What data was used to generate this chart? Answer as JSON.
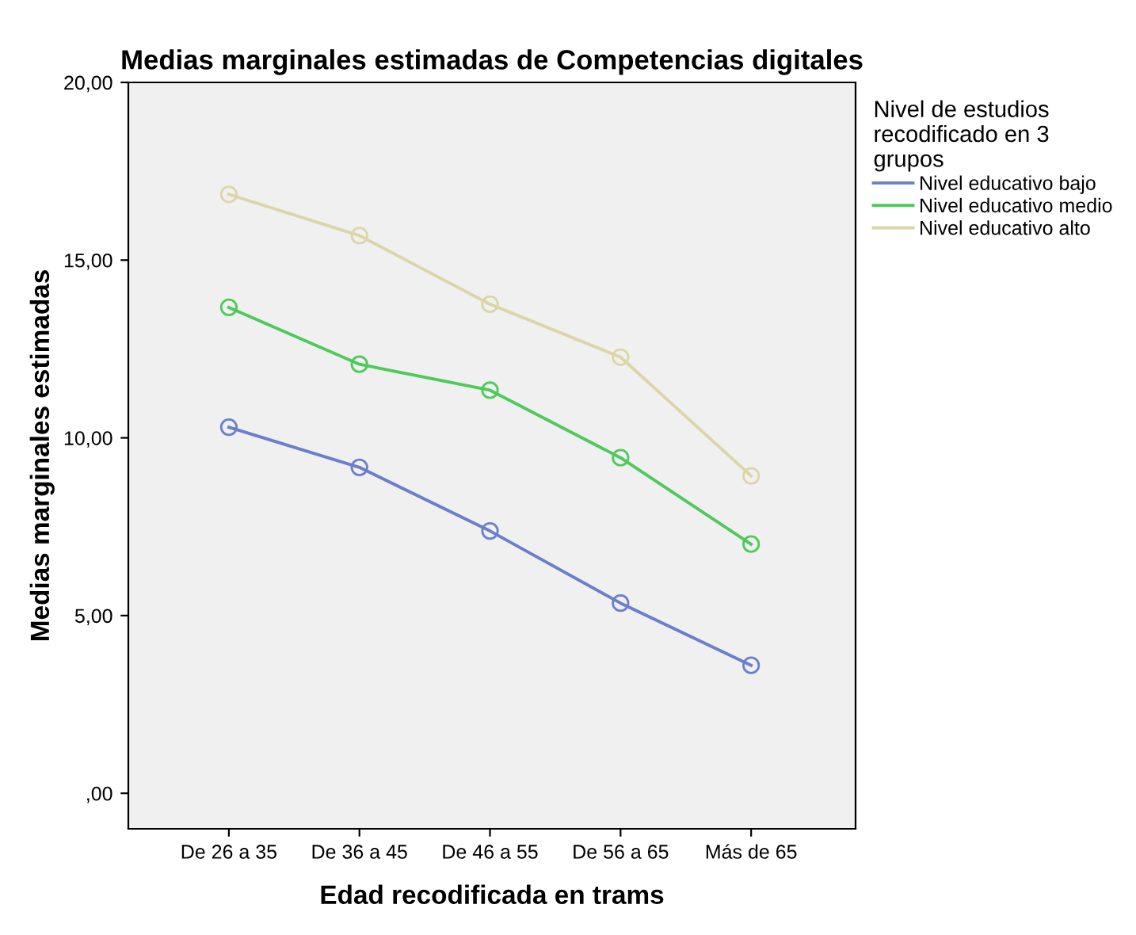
{
  "chart_data": {
    "type": "line",
    "title": "Medias marginales estimadas de Competencias digitales",
    "xlabel": "Edad recodificada en trams",
    "ylabel": "Medias marginales estimadas",
    "legend_title": "Nivel de estudios\nrecodificado en 3\ngrupos",
    "legend": "top right",
    "marker": "circle",
    "grid": false,
    "categories": [
      "De 26 a 35",
      "De 36 a 45",
      "De 46 a 55",
      "De 56 a 65",
      "Más de 65"
    ],
    "ylim": [
      -1,
      20
    ],
    "yticks": [
      {
        "value": 0,
        "label": ",00"
      },
      {
        "value": 5,
        "label": "5,00"
      },
      {
        "value": 10,
        "label": "10,00"
      },
      {
        "value": 15,
        "label": "15,00"
      },
      {
        "value": 20,
        "label": "20,00"
      }
    ],
    "series": [
      {
        "name": "Nivel educativo bajo",
        "color": "#6a7fcc",
        "values": [
          10.3,
          9.17,
          7.38,
          5.35,
          3.6
        ]
      },
      {
        "name": "Nivel educativo medio",
        "color": "#4fc95a",
        "values": [
          13.67,
          12.07,
          11.34,
          9.44,
          7.01
        ]
      },
      {
        "name": "Nivel educativo alto",
        "color": "#dcd5a8",
        "values": [
          16.85,
          15.69,
          13.76,
          12.27,
          8.93
        ]
      }
    ]
  }
}
